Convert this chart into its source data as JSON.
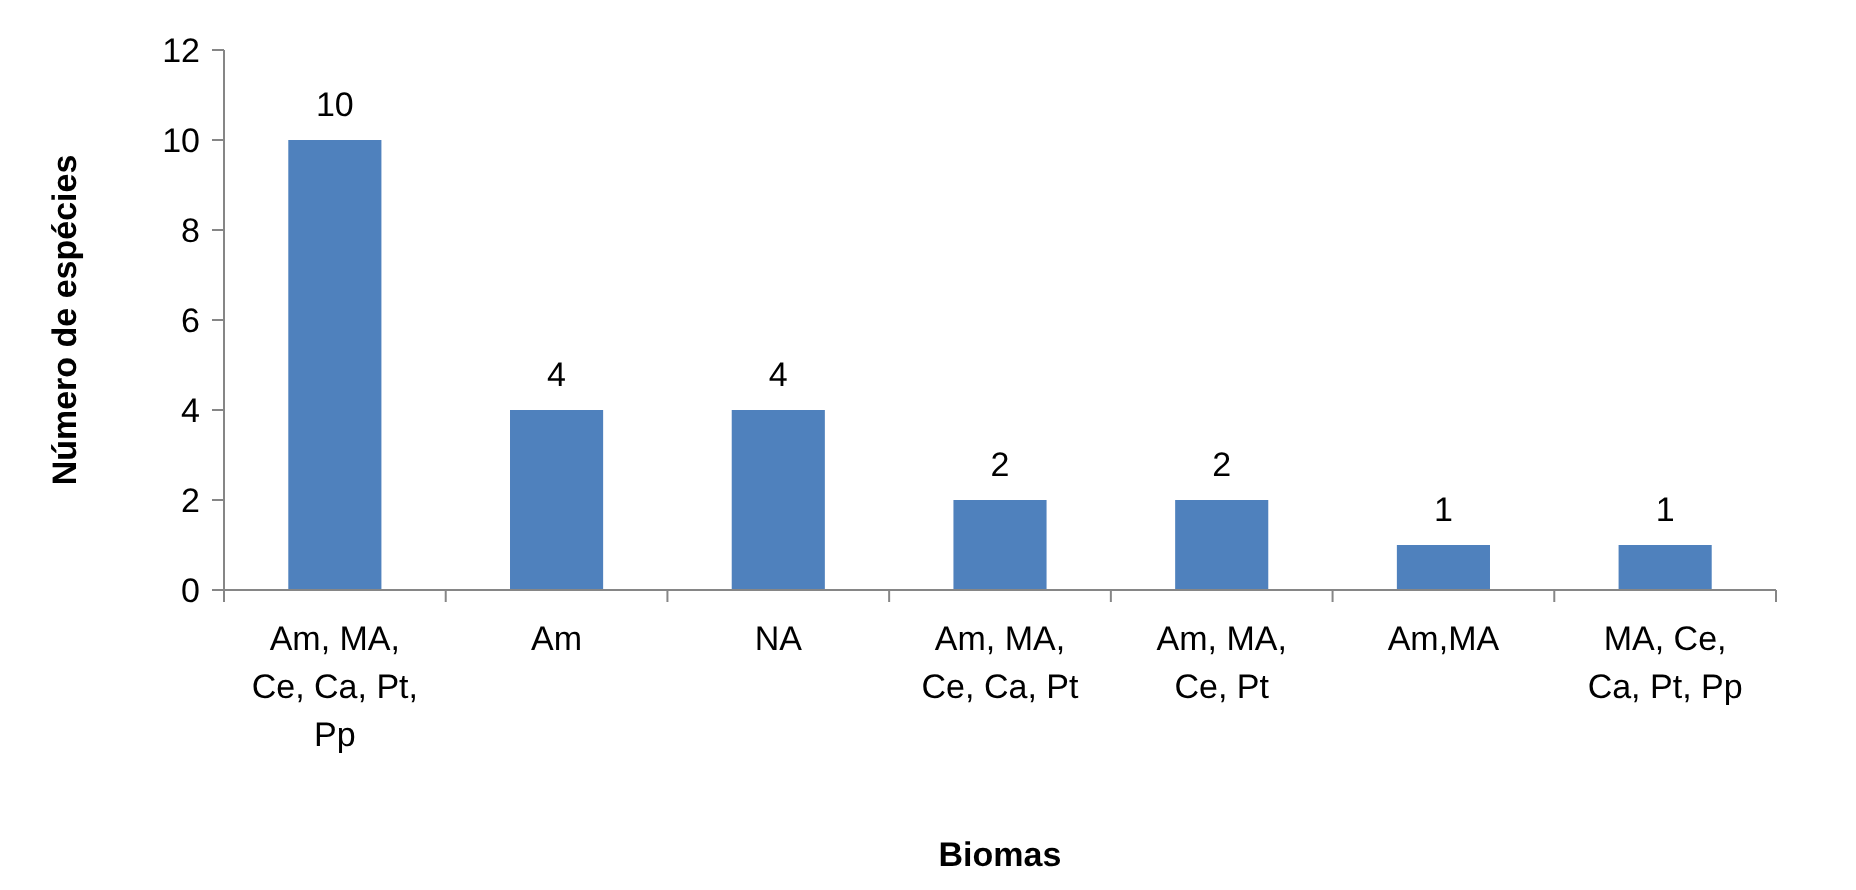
{
  "chart_data": {
    "type": "bar",
    "xlabel": "Biomas",
    "ylabel": "Número de espécies",
    "categories": [
      "Am, MA,\nCe, Ca, Pt,\nPp",
      "Am",
      "NA",
      "Am, MA,\nCe, Ca, Pt",
      "Am, MA,\nCe, Pt",
      "Am,MA",
      "MA, Ce,\nCa, Pt, Pp"
    ],
    "values": [
      10,
      4,
      4,
      2,
      2,
      1,
      1
    ],
    "color": "#4f81bd",
    "ylim": [
      0,
      12
    ],
    "yticks": [
      0,
      2,
      4,
      6,
      8,
      10,
      12
    ],
    "grid": false,
    "data_labels": true
  }
}
